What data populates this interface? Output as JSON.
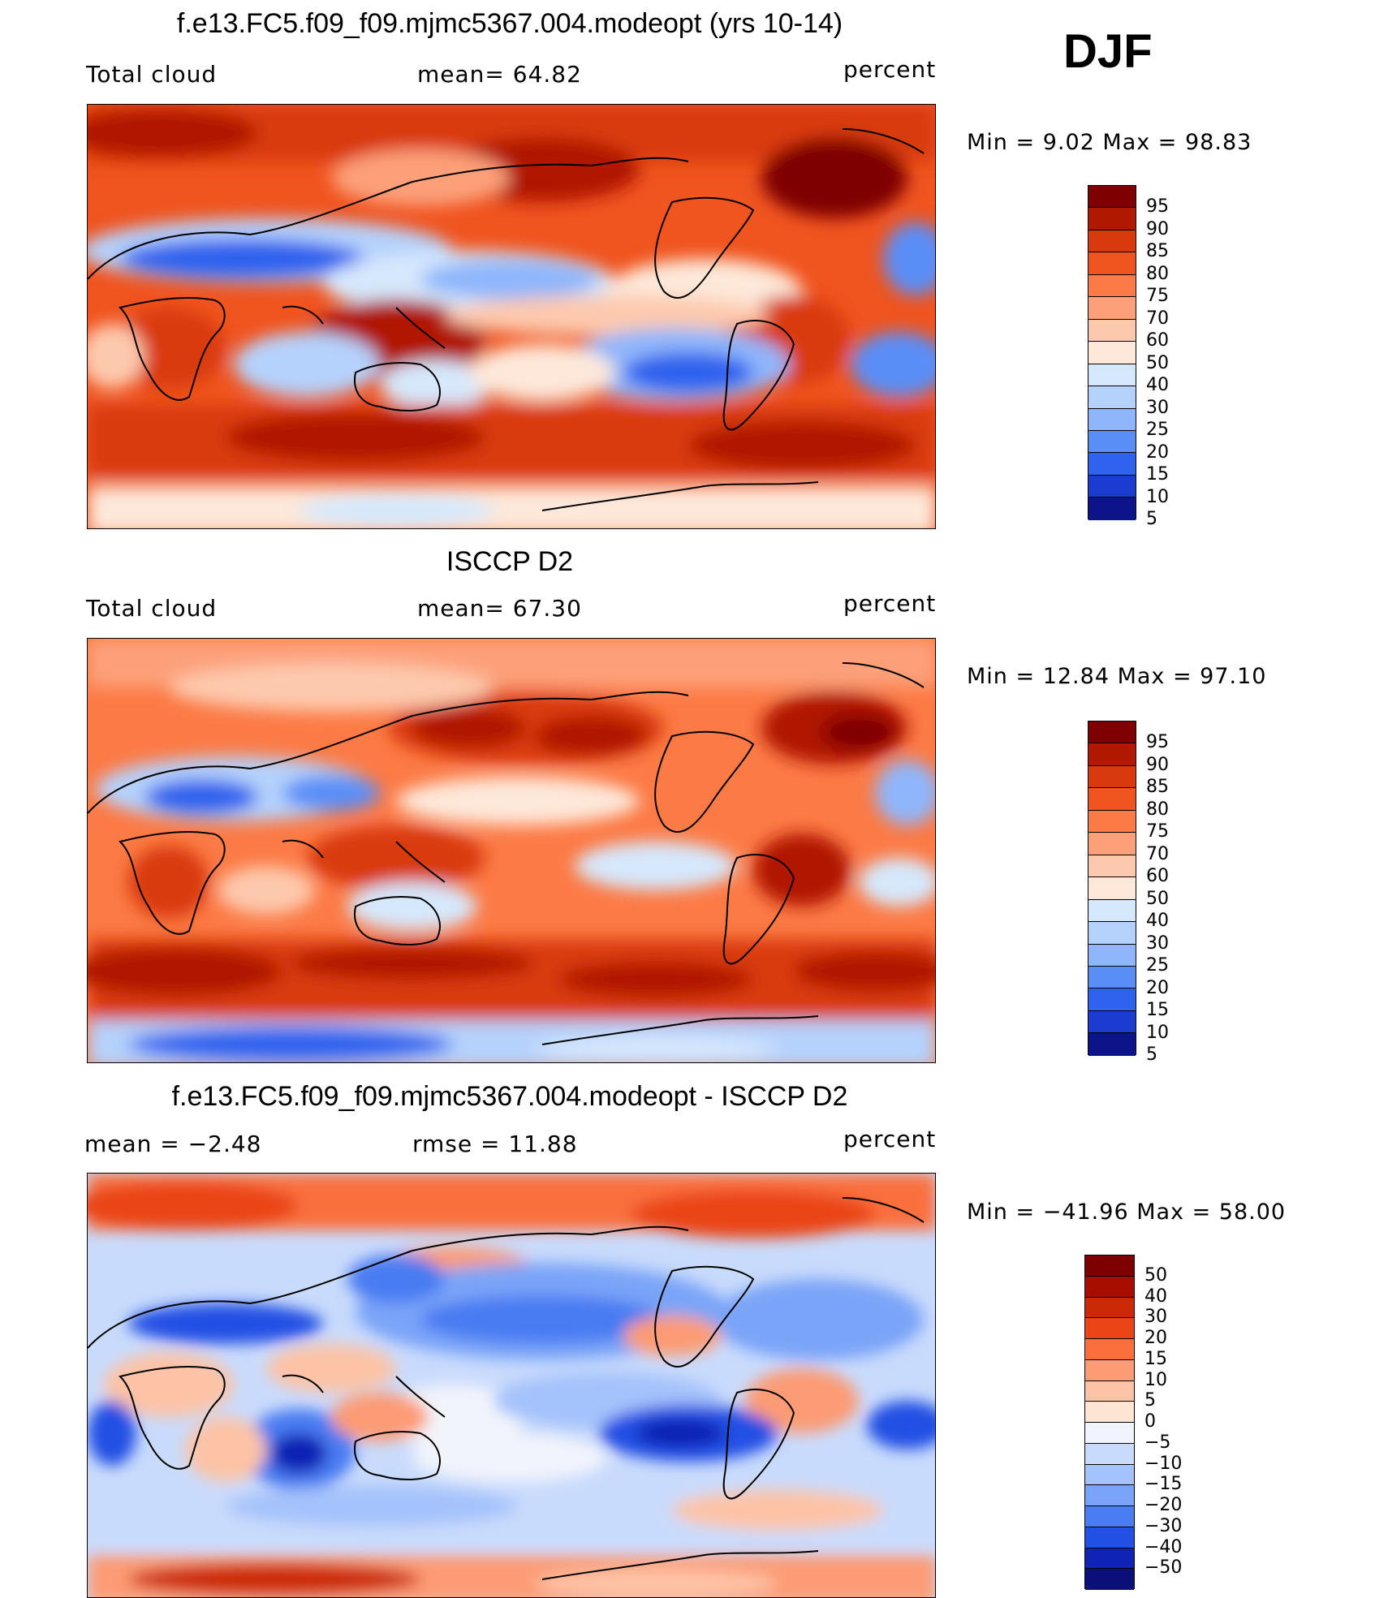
{
  "season": "DJF",
  "panels": [
    {
      "title": "f.e13.FC5.f09_f09.mjmc5367.004.modeopt (yrs 10-14)",
      "left_label": "Total cloud",
      "center_label": "mean=   64.82",
      "right_label": "percent",
      "min_max": "Min  =    9.02  Max  =   98.83",
      "map_name": "model-total-cloud-map",
      "colorbar_levels": [
        "95",
        "90",
        "85",
        "80",
        "75",
        "70",
        "60",
        "50",
        "40",
        "30",
        "25",
        "20",
        "15",
        "10",
        "5"
      ],
      "colors": [
        "#7f0000",
        "#b01800",
        "#d93a0c",
        "#f0541f",
        "#fc7a45",
        "#fca07a",
        "#fdc9ad",
        "#fde8d9",
        "#d6e8fc",
        "#b5d2fc",
        "#8fb6fb",
        "#5a8ef7",
        "#2f62ee",
        "#1c3bd0",
        "#0c148a"
      ]
    },
    {
      "title": "ISCCP D2",
      "left_label": "Total cloud",
      "center_label": "mean=   67.30",
      "right_label": "percent",
      "min_max": "Min  =   12.84  Max  =   97.10",
      "map_name": "isccp-total-cloud-map",
      "colorbar_levels": [
        "95",
        "90",
        "85",
        "80",
        "75",
        "70",
        "60",
        "50",
        "40",
        "30",
        "25",
        "20",
        "15",
        "10",
        "5"
      ],
      "colors": [
        "#7f0000",
        "#b01800",
        "#d93a0c",
        "#f0541f",
        "#fc7a45",
        "#fca07a",
        "#fdc9ad",
        "#fde8d9",
        "#d6e8fc",
        "#b5d2fc",
        "#8fb6fb",
        "#5a8ef7",
        "#2f62ee",
        "#1c3bd0",
        "#0c148a"
      ]
    },
    {
      "title": "f.e13.FC5.f09_f09.mjmc5367.004.modeopt - ISCCP D2",
      "left_label": "mean  =    −2.48",
      "center_label": "rmse  =    11.88",
      "right_label": "percent",
      "min_max": "Min  = −41.96  Max  =   58.00",
      "map_name": "difference-map",
      "colorbar_levels": [
        "50",
        "40",
        "30",
        "20",
        "15",
        "10",
        "5",
        "0",
        "−5",
        "−10",
        "−15",
        "−20",
        "−30",
        "−40",
        "−50"
      ],
      "colors": [
        "#7f0000",
        "#a80e00",
        "#cc2a06",
        "#ea4417",
        "#fa6f3c",
        "#fc9b74",
        "#fdc3a6",
        "#fde4d3",
        "#f2f4fb",
        "#c9dbfc",
        "#a4c2fb",
        "#7aa4f8",
        "#4a7cf2",
        "#2350e4",
        "#0f23b4",
        "#0a0f7a"
      ]
    }
  ]
}
